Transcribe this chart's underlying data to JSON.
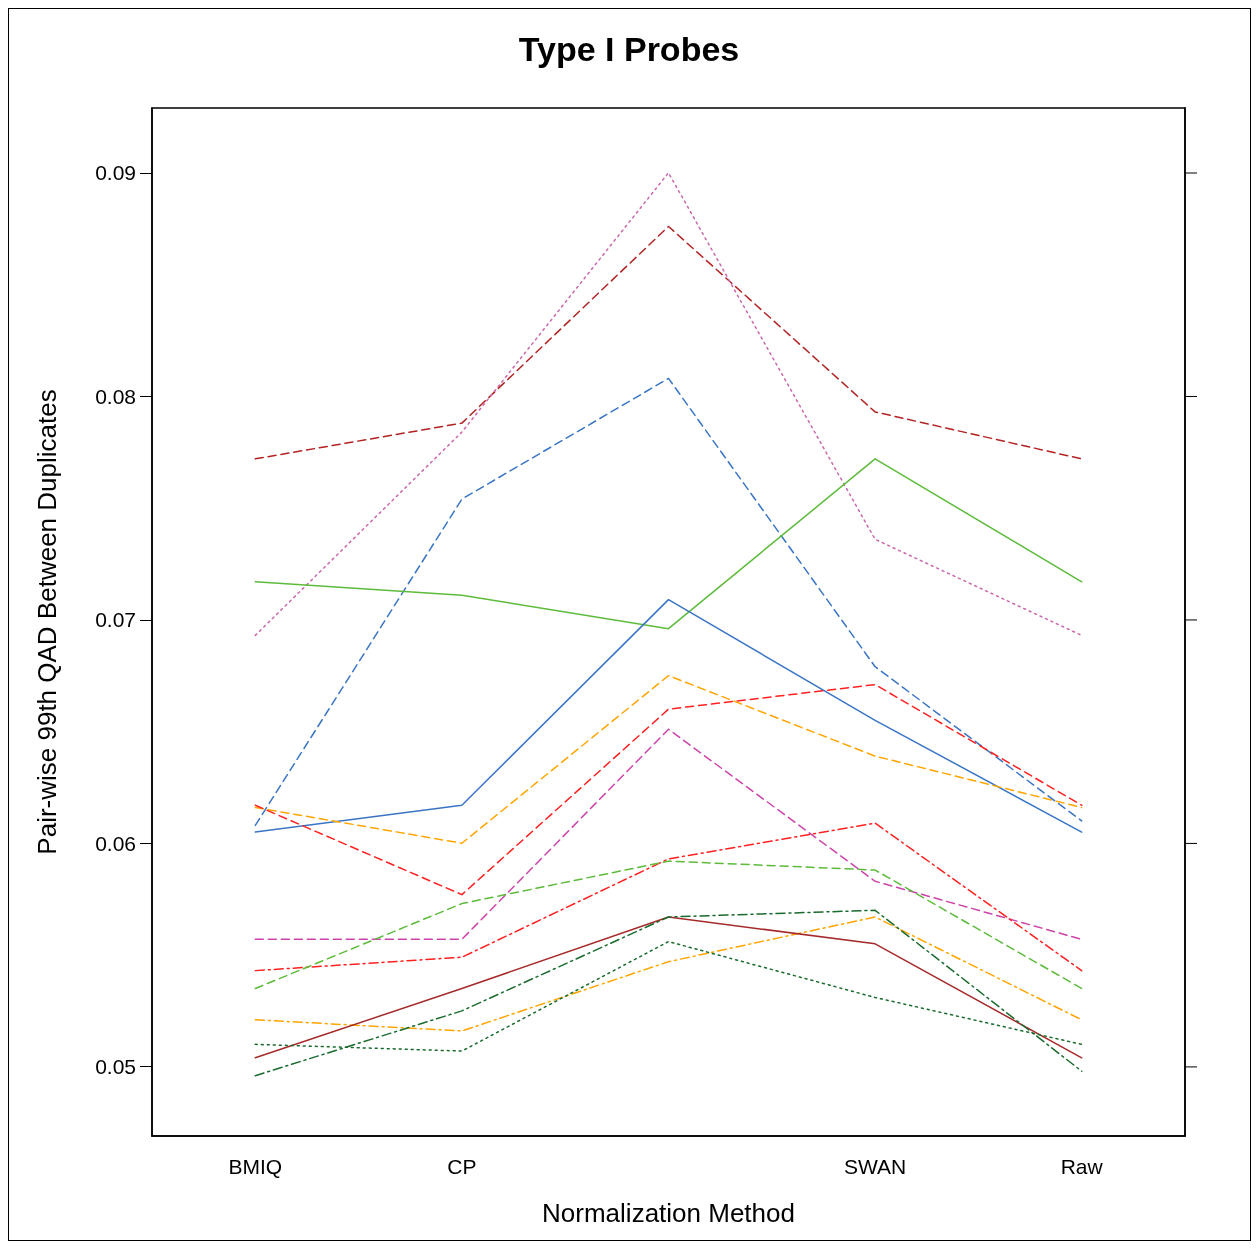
{
  "chart_data": {
    "type": "line",
    "title": "Type I Probes",
    "xlabel": "Normalization Method",
    "ylabel": "Pair-wise 99th QAD Between Duplicates",
    "categories": [
      "BMIQ",
      "CP",
      null,
      "SWAN",
      "Raw"
    ],
    "ylim": [
      0.0469,
      0.0929
    ],
    "yticks": [
      0.05,
      0.06,
      0.07,
      0.08,
      0.09
    ],
    "grid": false,
    "marker": "none",
    "series": [
      {
        "color": "#b22222",
        "line_style": "dashed",
        "values": [
          0.0772,
          0.0788,
          0.0876,
          0.0793,
          0.0772
        ]
      },
      {
        "color": "#cc66aa",
        "line_style": "dotted",
        "values": [
          0.0693,
          0.0784,
          0.09,
          0.0736,
          0.0693
        ]
      },
      {
        "color": "#3a75c4",
        "line_style": "dashed",
        "values": [
          0.0608,
          0.0754,
          0.0808,
          0.0679,
          0.061
        ]
      },
      {
        "color": "#5dbb3b",
        "line_style": "solid",
        "values": [
          0.0717,
          0.0711,
          0.0696,
          0.0772,
          0.0717
        ]
      },
      {
        "color": "#3a75c4",
        "line_style": "solid",
        "values": [
          0.0605,
          0.0617,
          0.0709,
          0.0655,
          0.0605
        ]
      },
      {
        "color": "#ffa500",
        "line_style": "dashed",
        "values": [
          0.0616,
          0.06,
          0.0675,
          0.0639,
          0.0616
        ]
      },
      {
        "color": "#ff2020",
        "line_style": "dashed",
        "values": [
          0.0617,
          0.0577,
          0.066,
          0.0671,
          0.0617
        ]
      },
      {
        "color": "#cc44aa",
        "line_style": "dashed",
        "values": [
          0.0557,
          0.0557,
          0.0651,
          0.0583,
          0.0557
        ]
      },
      {
        "color": "#ff2020",
        "line_style": "dashdot",
        "values": [
          0.0543,
          0.0549,
          0.0593,
          0.0609,
          0.0543
        ]
      },
      {
        "color": "#5dbb3b",
        "line_style": "dashed",
        "values": [
          0.0535,
          0.0573,
          0.0592,
          0.0588,
          0.0535
        ]
      },
      {
        "color": "#ffa500",
        "line_style": "dashdot",
        "values": [
          0.0521,
          0.0516,
          0.0547,
          0.0567,
          0.0521
        ]
      },
      {
        "color": "#a52a2a",
        "line_style": "solid",
        "values": [
          0.0504,
          0.0535,
          0.0567,
          0.0555,
          0.0504
        ]
      },
      {
        "color": "#1a6b2e",
        "line_style": "dashdot",
        "values": [
          0.0496,
          0.0525,
          0.0567,
          0.057,
          0.0498
        ]
      },
      {
        "color": "#1a6b2e",
        "line_style": "dotted",
        "values": [
          0.051,
          0.0507,
          0.0556,
          0.0531,
          0.051
        ]
      }
    ]
  }
}
